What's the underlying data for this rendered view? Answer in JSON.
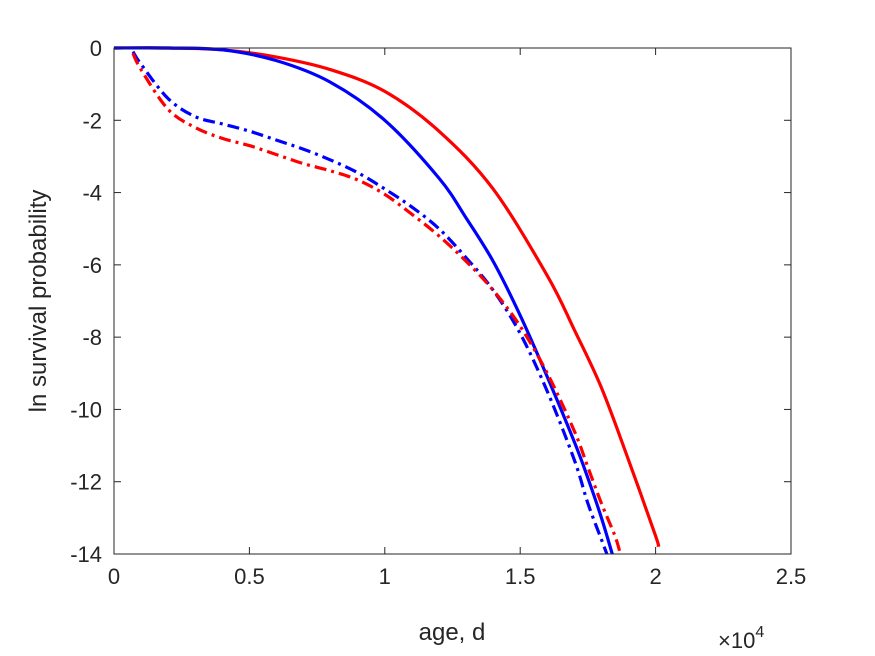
{
  "chart_data": {
    "type": "line",
    "title": "",
    "xlabel": "age, d",
    "ylabel": "ln survival probability",
    "x_exponent_label": "×10",
    "x_exponent_power": "4",
    "xlim": [
      0,
      25000
    ],
    "ylim": [
      -14,
      0
    ],
    "xticks": [
      0,
      5000,
      10000,
      15000,
      20000,
      25000
    ],
    "xtick_labels": [
      "0",
      "0.5",
      "1",
      "1.5",
      "2",
      "2.5"
    ],
    "yticks": [
      0,
      -2,
      -4,
      -6,
      -8,
      -10,
      -12,
      -14
    ],
    "ytick_labels": [
      "0",
      "-2",
      "-4",
      "-6",
      "-8",
      "-10",
      "-12",
      "-14"
    ],
    "grid": false,
    "series": [
      {
        "color": "#ff0000",
        "style": "solid",
        "x": [
          0,
          2000,
          4000,
          6000,
          8000,
          10000,
          12000,
          14000,
          16000,
          17000,
          18000,
          19000,
          20000,
          20100
        ],
        "y": [
          0,
          0,
          -0.05,
          -0.25,
          -0.6,
          -1.2,
          -2.3,
          -3.9,
          -6.3,
          -7.8,
          -9.4,
          -11.4,
          -13.5,
          -13.8
        ]
      },
      {
        "color": "#0000ff",
        "style": "solid",
        "x": [
          0,
          2000,
          4000,
          6000,
          8000,
          10000,
          12000,
          13000,
          14000,
          15000,
          16000,
          17000,
          17500,
          18000,
          18400
        ],
        "y": [
          0,
          0,
          -0.05,
          -0.35,
          -0.95,
          -2.0,
          -3.6,
          -4.7,
          -5.9,
          -7.4,
          -9.1,
          -10.9,
          -11.9,
          -13.0,
          -14.0
        ]
      },
      {
        "color": "#0000ff",
        "style": "dashdot",
        "x": [
          700,
          1000,
          2000,
          3000,
          4000,
          5000,
          6000,
          7000,
          8000,
          9000,
          10000,
          11000,
          12000,
          13000,
          14000,
          15000,
          16000,
          17000,
          17500,
          18000,
          18200
        ],
        "y": [
          -0.1,
          -0.45,
          -1.4,
          -1.9,
          -2.1,
          -2.3,
          -2.55,
          -2.8,
          -3.1,
          -3.45,
          -3.9,
          -4.4,
          -5.0,
          -5.8,
          -6.7,
          -7.9,
          -9.5,
          -11.4,
          -12.6,
          -13.6,
          -14.0
        ]
      },
      {
        "color": "#ff0000",
        "style": "dashdot",
        "x": [
          700,
          1000,
          2000,
          3000,
          4000,
          5000,
          6000,
          7000,
          8000,
          9000,
          10000,
          11000,
          12000,
          13000,
          14000,
          15000,
          16000,
          17000,
          17500,
          18000,
          18500,
          18700
        ],
        "y": [
          -0.15,
          -0.6,
          -1.7,
          -2.2,
          -2.5,
          -2.7,
          -2.95,
          -3.2,
          -3.4,
          -3.65,
          -4.05,
          -4.6,
          -5.2,
          -5.9,
          -6.7,
          -7.7,
          -9.0,
          -10.6,
          -11.6,
          -12.6,
          -13.5,
          -14.0
        ]
      }
    ]
  }
}
